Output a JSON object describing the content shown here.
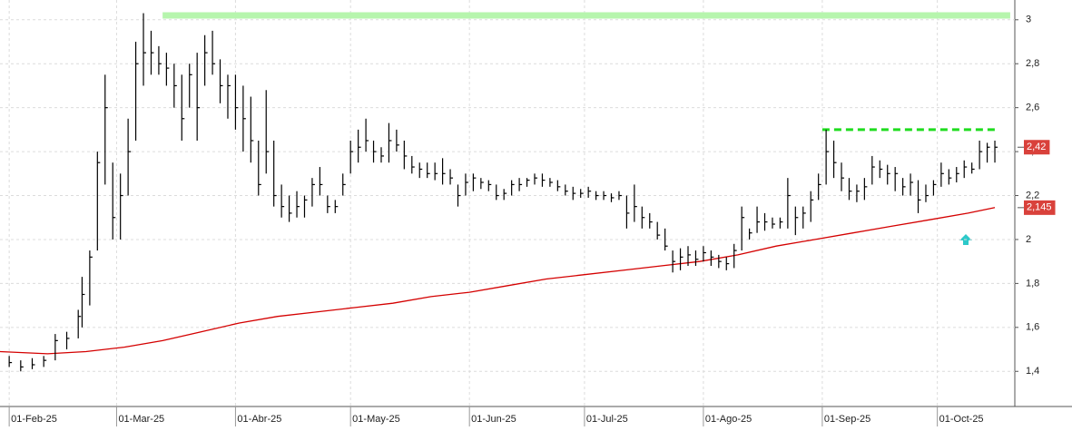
{
  "chart_data": {
    "type": "ohlc",
    "xlim": [
      -2.4,
      262.2
    ],
    "ylim": [
      1.24,
      3.09
    ],
    "grid": true,
    "xticks": [
      {
        "value": 0,
        "label": "01-Feb-25"
      },
      {
        "value": 28,
        "label": "01-Mar-25"
      },
      {
        "value": 59,
        "label": "01-Abr-25"
      },
      {
        "value": 89,
        "label": "01-May-25"
      },
      {
        "value": 120,
        "label": "01-Jun-25"
      },
      {
        "value": 150,
        "label": "01-Jul-25"
      },
      {
        "value": 181,
        "label": "01-Ago-25"
      },
      {
        "value": 212,
        "label": "01-Sep-25"
      },
      {
        "value": 242,
        "label": "01-Oct-25"
      }
    ],
    "yticks": [
      {
        "value": 1.4,
        "label": "1,4"
      },
      {
        "value": 1.6,
        "label": "1,6"
      },
      {
        "value": 1.8,
        "label": "1,8"
      },
      2,
      {
        "value": 2.2,
        "label": "2,2"
      },
      {
        "value": 2.4,
        "label": "2,4"
      },
      {
        "value": 2.6,
        "label": "2,6"
      },
      {
        "value": 2.8,
        "label": "2,8"
      },
      3
    ],
    "bars": {
      "color": "#000000",
      "x": [
        0,
        3,
        6,
        9,
        12,
        15,
        18,
        19,
        21,
        23,
        25,
        27,
        29,
        31,
        33,
        35,
        37,
        39,
        41,
        43,
        45,
        47,
        49,
        51,
        53,
        55,
        57,
        59,
        61,
        63,
        65,
        67,
        69,
        71,
        73,
        75,
        77,
        79,
        81,
        83,
        85,
        87,
        89,
        91,
        93,
        95,
        97,
        99,
        101,
        103,
        105,
        107,
        109,
        111,
        113,
        115,
        117,
        119,
        121,
        123,
        125,
        127,
        129,
        131,
        133,
        135,
        137,
        139,
        141,
        143,
        145,
        147,
        149,
        151,
        153,
        155,
        157,
        159,
        161,
        163,
        165,
        167,
        169,
        171,
        173,
        175,
        177,
        179,
        181,
        183,
        185,
        187,
        189,
        191,
        193,
        195,
        197,
        199,
        201,
        203,
        205,
        207,
        209,
        211,
        213,
        215,
        217,
        219,
        221,
        223,
        225,
        227,
        229,
        231,
        233,
        235,
        237,
        239,
        241,
        243,
        245,
        247,
        249,
        251,
        253,
        255,
        257
      ],
      "high": [
        1.47,
        1.45,
        1.46,
        1.47,
        1.57,
        1.58,
        1.68,
        1.83,
        1.95,
        2.4,
        2.75,
        2.35,
        2.3,
        2.55,
        2.9,
        3.03,
        2.95,
        2.88,
        2.85,
        2.8,
        2.75,
        2.8,
        2.85,
        2.93,
        2.95,
        2.82,
        2.75,
        2.75,
        2.7,
        2.65,
        2.45,
        2.68,
        2.45,
        2.25,
        2.2,
        2.22,
        2.2,
        2.28,
        2.33,
        2.2,
        2.18,
        2.3,
        2.45,
        2.5,
        2.55,
        2.45,
        2.42,
        2.53,
        2.5,
        2.45,
        2.38,
        2.35,
        2.35,
        2.35,
        2.37,
        2.32,
        2.25,
        2.3,
        2.3,
        2.28,
        2.27,
        2.25,
        2.23,
        2.27,
        2.28,
        2.28,
        2.3,
        2.3,
        2.28,
        2.27,
        2.25,
        2.24,
        2.23,
        2.24,
        2.22,
        2.22,
        2.21,
        2.22,
        2.2,
        2.25,
        2.15,
        2.12,
        2.08,
        2.05,
        1.95,
        1.96,
        1.97,
        1.95,
        1.97,
        1.95,
        1.93,
        1.92,
        1.98,
        2.15,
        2.05,
        2.15,
        2.12,
        2.1,
        2.1,
        2.28,
        2.15,
        2.15,
        2.22,
        2.3,
        2.5,
        2.45,
        2.35,
        2.28,
        2.25,
        2.28,
        2.38,
        2.36,
        2.34,
        2.33,
        2.28,
        2.3,
        2.27,
        2.25,
        2.27,
        2.35,
        2.32,
        2.33,
        2.36,
        2.35,
        2.45,
        2.44,
        2.45
      ],
      "low": [
        1.42,
        1.4,
        1.41,
        1.42,
        1.45,
        1.5,
        1.55,
        1.6,
        1.7,
        1.95,
        2.25,
        2.0,
        2.0,
        2.2,
        2.45,
        2.7,
        2.75,
        2.75,
        2.7,
        2.6,
        2.45,
        2.6,
        2.45,
        2.7,
        2.75,
        2.62,
        2.55,
        2.5,
        2.4,
        2.35,
        2.2,
        2.3,
        2.15,
        2.1,
        2.08,
        2.1,
        2.1,
        2.15,
        2.2,
        2.12,
        2.12,
        2.2,
        2.3,
        2.35,
        2.4,
        2.35,
        2.35,
        2.35,
        2.4,
        2.32,
        2.3,
        2.28,
        2.28,
        2.27,
        2.25,
        2.25,
        2.15,
        2.2,
        2.22,
        2.23,
        2.22,
        2.18,
        2.18,
        2.2,
        2.22,
        2.24,
        2.25,
        2.24,
        2.24,
        2.22,
        2.2,
        2.18,
        2.19,
        2.19,
        2.18,
        2.18,
        2.17,
        2.18,
        2.05,
        2.08,
        2.05,
        2.05,
        2.0,
        1.95,
        1.85,
        1.86,
        1.88,
        1.88,
        1.9,
        1.88,
        1.87,
        1.86,
        1.87,
        1.95,
        2.0,
        2.03,
        2.04,
        2.05,
        2.05,
        2.05,
        2.02,
        2.05,
        2.08,
        2.18,
        2.25,
        2.28,
        2.22,
        2.18,
        2.17,
        2.18,
        2.25,
        2.28,
        2.25,
        2.22,
        2.2,
        2.2,
        2.12,
        2.17,
        2.2,
        2.24,
        2.25,
        2.26,
        2.28,
        2.3,
        2.32,
        2.35,
        2.35
      ],
      "close": [
        1.44,
        1.42,
        1.43,
        1.45,
        1.54,
        1.55,
        1.65,
        1.75,
        1.92,
        2.35,
        2.6,
        2.1,
        2.2,
        2.4,
        2.8,
        2.85,
        2.85,
        2.8,
        2.78,
        2.7,
        2.55,
        2.75,
        2.6,
        2.85,
        2.8,
        2.7,
        2.7,
        2.6,
        2.55,
        2.45,
        2.25,
        2.4,
        2.2,
        2.15,
        2.12,
        2.15,
        2.18,
        2.25,
        2.25,
        2.15,
        2.15,
        2.25,
        2.4,
        2.42,
        2.45,
        2.4,
        2.38,
        2.45,
        2.43,
        2.38,
        2.33,
        2.32,
        2.3,
        2.3,
        2.3,
        2.28,
        2.2,
        2.26,
        2.28,
        2.26,
        2.25,
        2.2,
        2.21,
        2.25,
        2.25,
        2.27,
        2.28,
        2.27,
        2.26,
        2.24,
        2.22,
        2.21,
        2.21,
        2.22,
        2.2,
        2.2,
        2.19,
        2.2,
        2.12,
        2.15,
        2.1,
        2.08,
        2.02,
        1.97,
        1.9,
        1.92,
        1.93,
        1.91,
        1.94,
        1.92,
        1.9,
        1.89,
        1.95,
        2.1,
        2.03,
        2.08,
        2.08,
        2.07,
        2.08,
        2.2,
        2.1,
        2.12,
        2.18,
        2.25,
        2.4,
        2.35,
        2.28,
        2.22,
        2.22,
        2.24,
        2.33,
        2.32,
        2.3,
        2.3,
        2.24,
        2.26,
        2.18,
        2.2,
        2.25,
        2.3,
        2.28,
        2.3,
        2.33,
        2.32,
        2.4,
        2.42,
        2.42
      ]
    },
    "moving_average": {
      "color": "#d40000",
      "x": [
        -2.4,
        10,
        20,
        30,
        40,
        50,
        60,
        70,
        80,
        90,
        100,
        110,
        120,
        130,
        140,
        150,
        160,
        170,
        180,
        190,
        200,
        210,
        220,
        230,
        240,
        250,
        257
      ],
      "values": [
        1.49,
        1.48,
        1.49,
        1.51,
        1.54,
        1.58,
        1.62,
        1.65,
        1.67,
        1.69,
        1.71,
        1.74,
        1.76,
        1.79,
        1.82,
        1.84,
        1.86,
        1.88,
        1.9,
        1.93,
        1.97,
        2.0,
        2.03,
        2.06,
        2.09,
        2.12,
        2.145
      ]
    },
    "levels": [
      {
        "value": 3.02,
        "x": [
          40,
          261
        ],
        "color": "#b6f5ad",
        "style": "solid"
      },
      {
        "value": 2.5,
        "x": [
          212,
          257
        ],
        "color": "#1fdc1f",
        "style": "dashed"
      }
    ],
    "price_tags": [
      {
        "value": 2.42,
        "label": "2,42"
      },
      {
        "value": 2.145,
        "label": "2,145"
      }
    ]
  }
}
